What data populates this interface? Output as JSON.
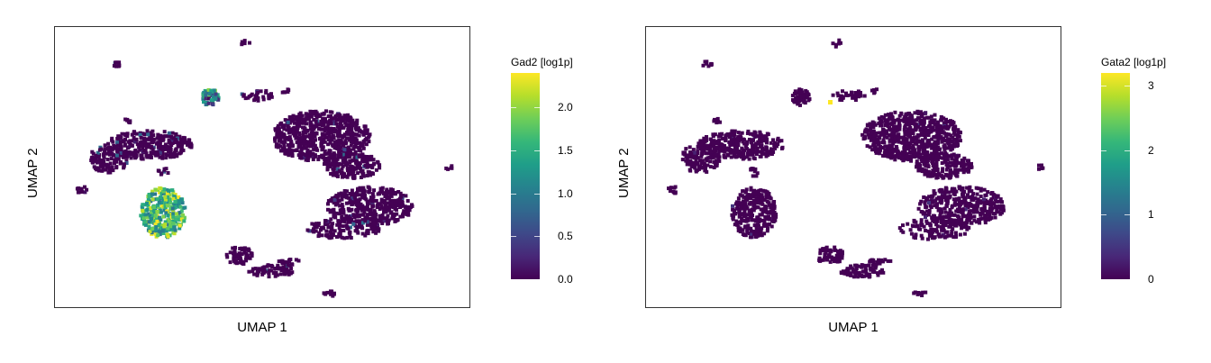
{
  "chart_data": [
    {
      "type": "scatter",
      "xlabel": "UMAP 1",
      "ylabel": "UMAP 2",
      "colorbar": {
        "title": "Gad2 [log1p]",
        "ticks": [
          "0.0",
          "0.5",
          "1.0",
          "1.5",
          "2.0"
        ],
        "tick_values": [
          0,
          0.5,
          1.0,
          1.5,
          2.0
        ],
        "range": [
          0,
          2.4
        ],
        "colormap": "viridis"
      },
      "grid": false,
      "highlight_cluster_values": "high expression (~1.5-2.4) in lower-left elongated cluster and small upper cluster",
      "seed": 11
    },
    {
      "type": "scatter",
      "xlabel": "UMAP 1",
      "ylabel": "UMAP 2",
      "colorbar": {
        "title": "Gata2 [log1p]",
        "ticks": [
          "0",
          "1",
          "2",
          "3"
        ],
        "tick_values": [
          0,
          1,
          2,
          3
        ],
        "range": [
          0,
          3.2
        ],
        "colormap": "viridis"
      },
      "grid": false,
      "highlight_cluster_values": "near zero everywhere except a single cell at ~3.2",
      "seed": 23
    }
  ],
  "colors": {
    "viridis_low": "#440154",
    "viridis_mid": "#21918c",
    "viridis_high": "#fde725"
  }
}
